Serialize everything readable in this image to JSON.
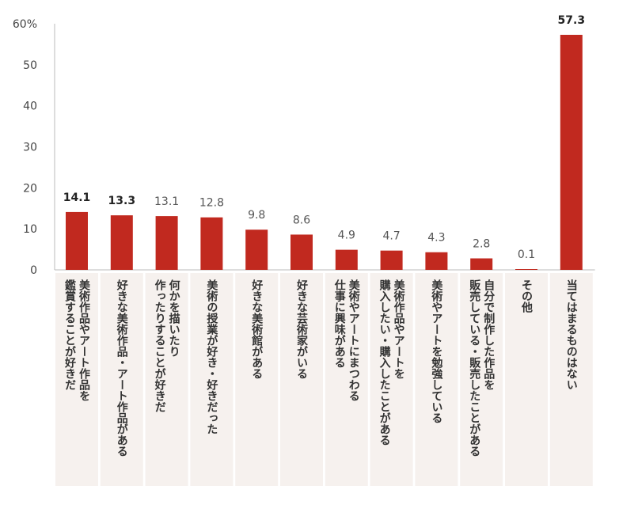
{
  "chart_data": {
    "type": "bar",
    "ylim": [
      0,
      60
    ],
    "yticks": [
      {
        "label": "0",
        "value": 0
      },
      {
        "label": "10",
        "value": 10
      },
      {
        "label": "20",
        "value": 20
      },
      {
        "label": "30",
        "value": 30
      },
      {
        "label": "40",
        "value": 40
      },
      {
        "label": "50",
        "value": 50
      },
      {
        "label": "60%",
        "value": 60
      }
    ],
    "bar_color": "#c1291f",
    "label_bg_color": "#f6f1ee",
    "categories": [
      [
        "美術作品やアート作品を",
        "鑑賞することが好きだ"
      ],
      [
        "好きな美術作品・アート作品がある"
      ],
      [
        "何かを描いたり",
        "作ったりすることが好きだ"
      ],
      [
        "美術の授業が好き・好きだった"
      ],
      [
        "好きな美術館がある"
      ],
      [
        "好きな芸術家がいる"
      ],
      [
        "美術やアートにまつわる",
        "仕事に興味がある"
      ],
      [
        "美術作品やアートを",
        "購入したい・購入したことがある"
      ],
      [
        "美術やアートを勉強している"
      ],
      [
        "自分で制作した作品を",
        "販売している・販売したことがある"
      ],
      [
        "その他"
      ],
      [
        "当てはまるものはない"
      ]
    ],
    "values": [
      14.1,
      13.3,
      13.1,
      12.8,
      9.8,
      8.6,
      4.9,
      4.7,
      4.3,
      2.8,
      0.1,
      57.3
    ],
    "value_labels": [
      "14.1",
      "13.3",
      "13.1",
      "12.8",
      "9.8",
      "8.6",
      "4.9",
      "4.7",
      "4.3",
      "2.8",
      "0.1",
      "57.3"
    ],
    "bold_labels": [
      true,
      true,
      false,
      false,
      false,
      false,
      false,
      false,
      false,
      false,
      false,
      true
    ]
  }
}
